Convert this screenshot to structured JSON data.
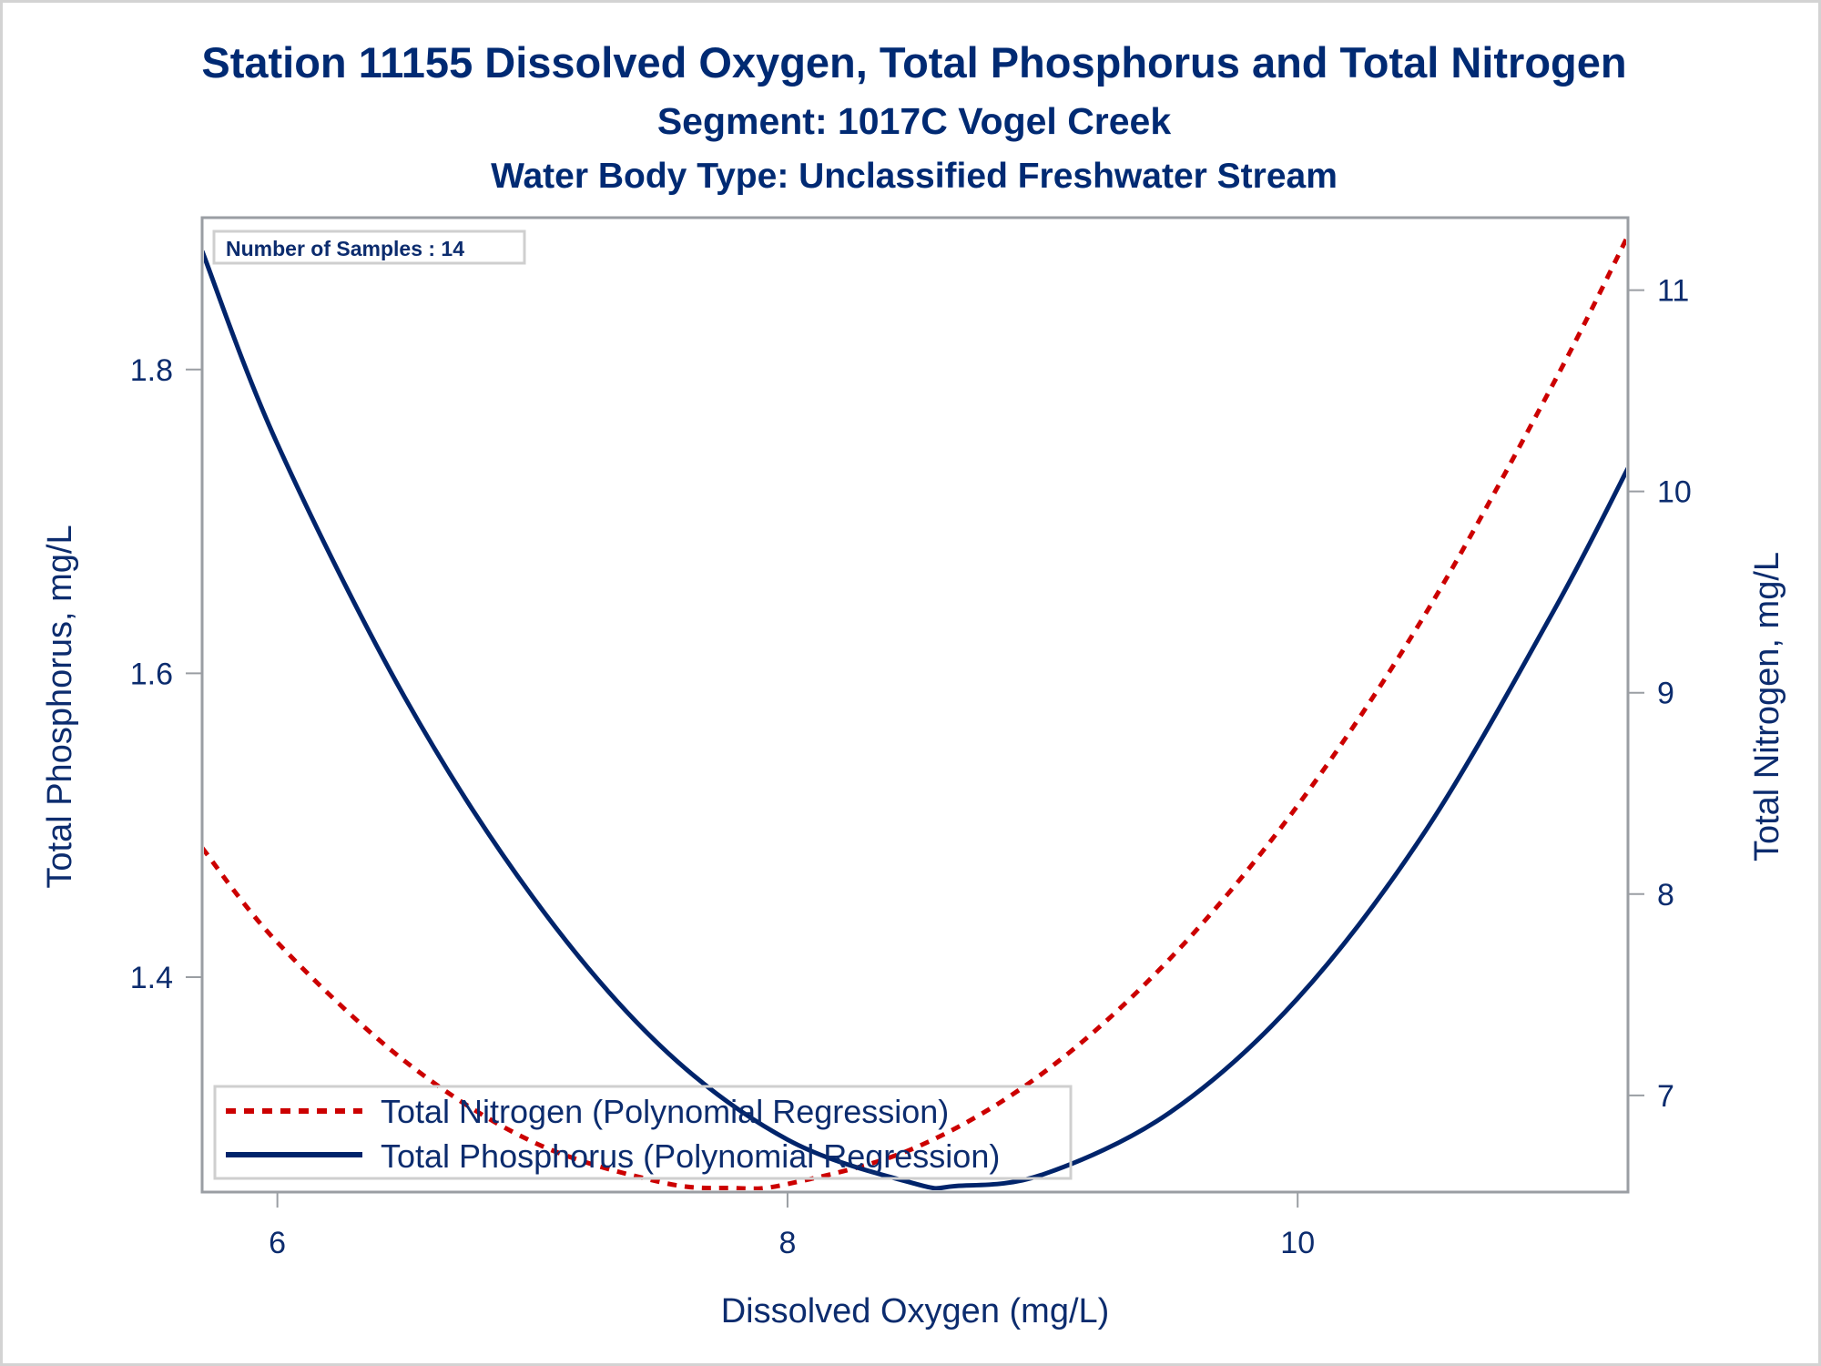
{
  "chart_data": {
    "type": "line",
    "title": "Station 11155  Dissolved Oxygen, Total Phosphorus and Total Nitrogen",
    "subtitle": "Segment: 1017C  Vogel Creek",
    "subtitle2": "Water Body Type: Unclassified Freshwater Stream",
    "xlabel": "Dissolved Oxygen (mg/L)",
    "ylabel_left": "Total Phosphorus, mg/L",
    "ylabel_right": "Total Nitrogen, mg/L",
    "xlim": [
      5.705,
      11.295
    ],
    "ylim_left": [
      1.2585,
      1.9
    ],
    "ylim_right": [
      6.52,
      11.36
    ],
    "x_ticks": [
      6,
      8,
      10
    ],
    "x_tick_labels": [
      "6",
      "8",
      "10"
    ],
    "y_left_ticks": [
      1.4,
      1.6,
      1.8
    ],
    "y_left_tick_labels": [
      "1.4",
      "1.6",
      "1.8"
    ],
    "y_right_ticks": [
      7,
      8,
      9,
      10,
      11
    ],
    "y_right_tick_labels": [
      "7",
      "8",
      "9",
      "10",
      "11"
    ],
    "grid": false,
    "annotation": "Number of Samples : 14",
    "legend_position": "bottom-left",
    "series": [
      {
        "name": "Total Nitrogen (Polynomial Regression)",
        "axis": "right",
        "style": "dashed",
        "color": "#cc0000",
        "x": [
          5.705,
          6.0,
          6.5,
          7.0,
          7.5,
          7.78,
          8.0,
          8.5,
          9.0,
          9.5,
          10.0,
          10.5,
          11.0,
          11.295
        ],
        "y": [
          8.23,
          7.76,
          7.17,
          6.77,
          6.57,
          6.54,
          6.56,
          6.74,
          7.11,
          7.68,
          8.44,
          9.39,
          10.53,
          11.27
        ]
      },
      {
        "name": "Total Phosphorus (Polynomial Regression)",
        "axis": "left",
        "style": "solid",
        "color": "#00246b",
        "x": [
          5.705,
          6.0,
          6.5,
          7.0,
          7.5,
          8.0,
          8.5,
          8.66,
          9.0,
          9.5,
          10.0,
          10.5,
          11.0,
          11.295
        ],
        "y": [
          1.878,
          1.751,
          1.584,
          1.453,
          1.355,
          1.293,
          1.264,
          1.2625,
          1.27,
          1.311,
          1.386,
          1.496,
          1.64,
          1.735
        ]
      }
    ]
  }
}
